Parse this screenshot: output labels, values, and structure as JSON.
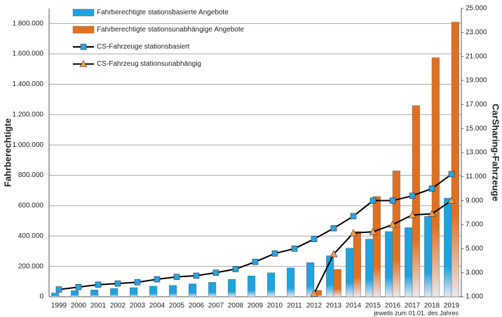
{
  "chart_data": {
    "type": "combo",
    "categories": [
      "1999",
      "2000",
      "2001",
      "2002",
      "2003",
      "2004",
      "2005",
      "2006",
      "2007",
      "2008",
      "2009",
      "2010",
      "2011",
      "2012",
      "2013",
      "2014",
      "2015",
      "2016",
      "2017",
      "2018",
      "2019"
    ],
    "y_label": "Fahrberechtigte",
    "y2_label": "CarSharing-Fahrzeuge",
    "note": "jeweils  zum 01.01. des Jahres",
    "ylim": [
      0,
      1900000
    ],
    "yticks": [
      0,
      {
        "value": 200000,
        "label": "200.000"
      },
      {
        "value": 400000,
        "label": "400.000"
      },
      {
        "value": 600000,
        "label": "600.000"
      },
      {
        "value": 800000,
        "label": "800.000"
      },
      {
        "value": 1000000,
        "label": "1.000.000"
      },
      {
        "value": 1200000,
        "label": "1.200.000"
      },
      {
        "value": 1400000,
        "label": "1.400.000"
      },
      {
        "value": 1600000,
        "label": "1.600.000"
      },
      {
        "value": 1800000,
        "label": "1.800.000"
      }
    ],
    "y2lim": [
      1000,
      25000
    ],
    "y2ticks": [
      {
        "value": 1000,
        "label": "1.000"
      },
      {
        "value": 3000,
        "label": "3.000"
      },
      {
        "value": 5000,
        "label": "5.000"
      },
      {
        "value": 7000,
        "label": "7.000"
      },
      {
        "value": 9000,
        "label": "9.000"
      },
      {
        "value": 11000,
        "label": "11.000"
      },
      {
        "value": 13000,
        "label": "13.000"
      },
      {
        "value": 15000,
        "label": "15.000"
      },
      {
        "value": 17000,
        "label": "17.000"
      },
      {
        "value": 19000,
        "label": "19.000"
      },
      {
        "value": 21000,
        "label": "21.000"
      },
      {
        "value": 23000,
        "label": "23.000"
      },
      {
        "value": 25000,
        "label": "25.000"
      }
    ],
    "grid": true,
    "legend": "upper left",
    "series": [
      {
        "name": "Fahrberechtigte stationsbasierte Angebote",
        "type": "bar",
        "color": "#1ea3e0",
        "values": [
          25000,
          40000,
          45000,
          55000,
          60000,
          70000,
          75000,
          85000,
          95000,
          115000,
          137000,
          158000,
          190000,
          225000,
          270000,
          320000,
          380000,
          430000,
          455000,
          530000,
          650000
        ]
      },
      {
        "name": "Fahrberechtigte stationsunabhängige Angebote",
        "type": "bar",
        "color": "#e07020",
        "values": [
          null,
          null,
          null,
          null,
          null,
          null,
          null,
          null,
          null,
          null,
          null,
          null,
          null,
          42000,
          180000,
          430000,
          660000,
          830000,
          1260000,
          1575000,
          1810000
        ]
      },
      {
        "name": "CS-Fahrzeuge stationsbasiert",
        "type": "line",
        "axis": "y2",
        "marker": "square",
        "color": "#2aa3e0",
        "line_color": "#000000",
        "values": [
          1600,
          1800,
          2000,
          2100,
          2200,
          2450,
          2650,
          2750,
          3000,
          3300,
          3900,
          4600,
          5000,
          5800,
          6700,
          7700,
          9000,
          9000,
          9400,
          10000,
          11200
        ]
      },
      {
        "name": "CS-Fahrzeug stationsunabhängig",
        "type": "line",
        "axis": "y2",
        "marker": "triangle",
        "color": "#f0a050",
        "line_color": "#000000",
        "values": [
          null,
          null,
          null,
          null,
          null,
          null,
          null,
          null,
          null,
          null,
          null,
          null,
          null,
          1260,
          4550,
          6300,
          6400,
          7000,
          7800,
          7900,
          9000
        ]
      }
    ]
  }
}
